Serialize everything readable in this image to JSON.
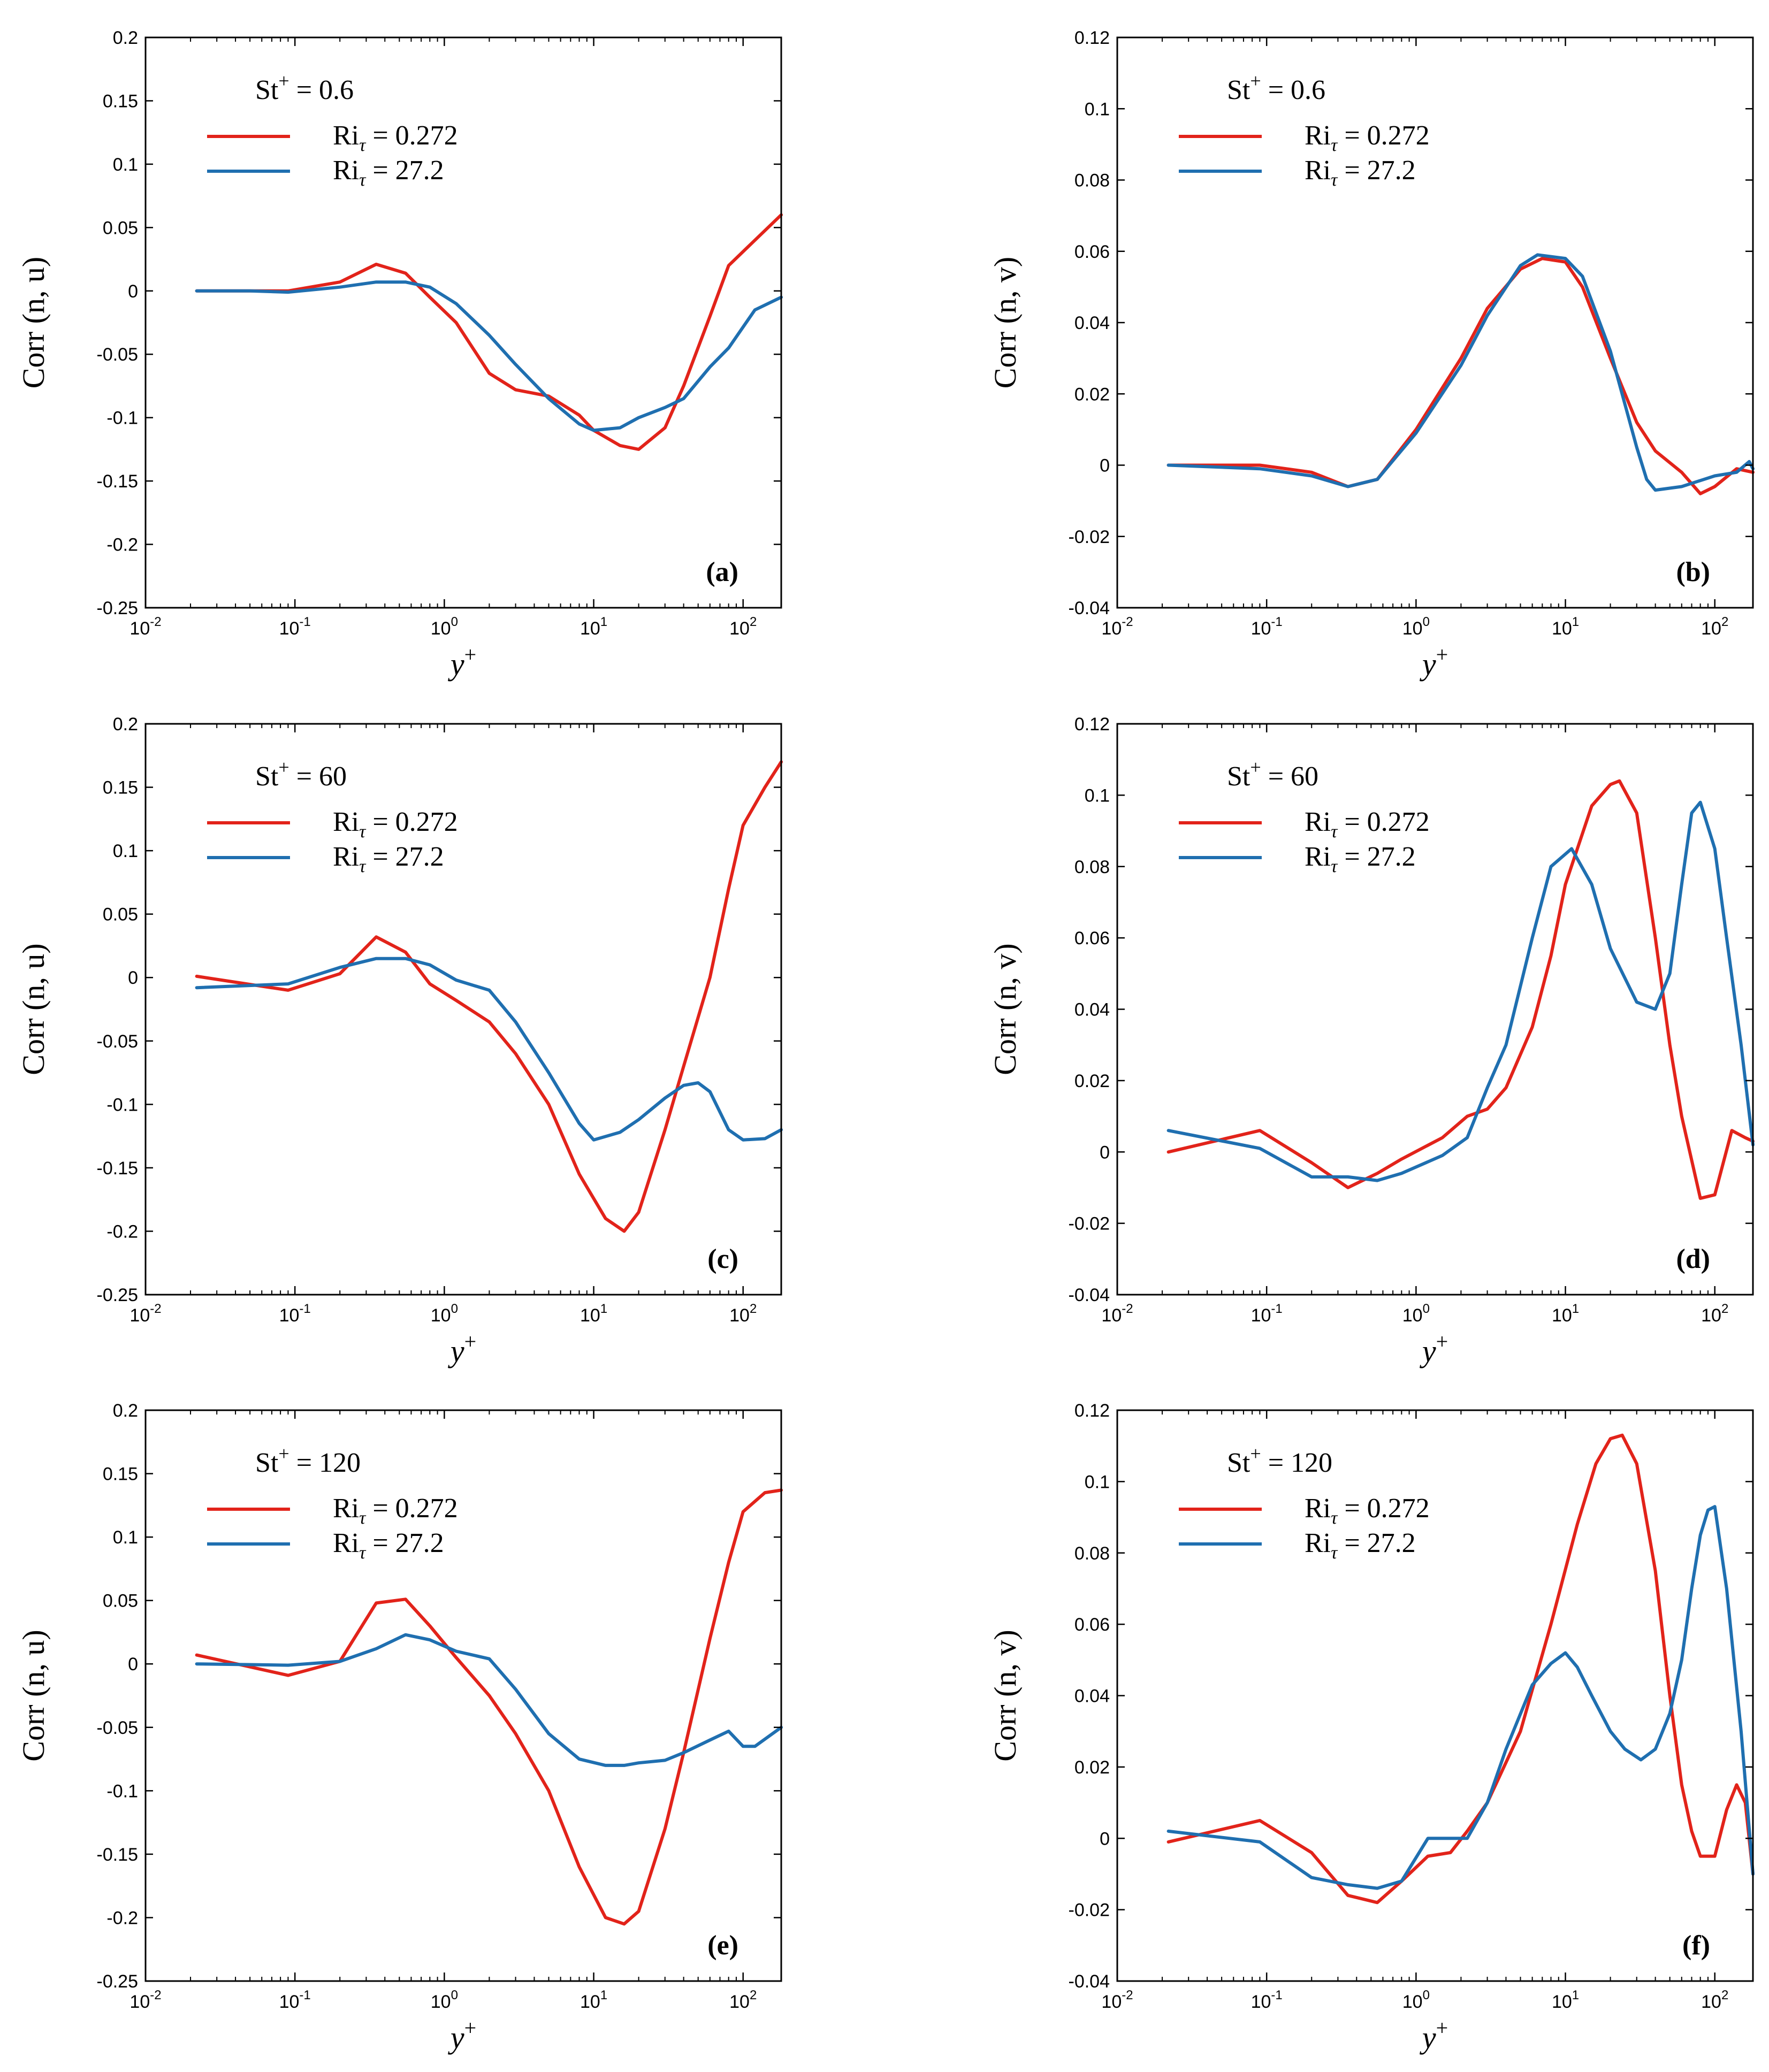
{
  "chart_data": [
    {
      "type": "line",
      "panel_label": "(a)",
      "title": "St⁺ = 0.6",
      "title_base": "St",
      "title_sup": "+",
      "title_value": "= 0.6",
      "xlabel": "y",
      "xlabel_sup": "+",
      "ylabel": "Corr (n, u)",
      "xscale": "log",
      "xlim": [
        0.01,
        180
      ],
      "ylim": [
        -0.25,
        0.2
      ],
      "x_ticks": [
        {
          "base": "10",
          "exp": "-2"
        },
        {
          "base": "10",
          "exp": "-1"
        },
        {
          "base": "10",
          "exp": "0"
        },
        {
          "base": "10",
          "exp": "1"
        },
        {
          "base": "10",
          "exp": "2"
        }
      ],
      "y_ticks": [
        "-0.25",
        "-0.2",
        "-0.15",
        "-0.1",
        "-0.05",
        "0",
        "0.05",
        "0.1",
        "0.15",
        "0.2"
      ],
      "legend_position": "top-left",
      "series": [
        {
          "name": "Ri_τ = 0.272",
          "legend_base": "Ri",
          "legend_sub": "τ",
          "legend_value": "= 0.272",
          "color": "#e2231a",
          "x": [
            0.022,
            0.05,
            0.09,
            0.2,
            0.35,
            0.55,
            0.8,
            1.2,
            2,
            3,
            5,
            8,
            10,
            15,
            20,
            30,
            40,
            60,
            80,
            120,
            180
          ],
          "y": [
            0,
            0,
            0,
            0.007,
            0.021,
            0.014,
            -0.005,
            -0.025,
            -0.065,
            -0.078,
            -0.083,
            -0.098,
            -0.11,
            -0.122,
            -0.125,
            -0.108,
            -0.075,
            -0.02,
            0.02,
            0.04,
            0.06
          ]
        },
        {
          "name": "Ri_τ = 27.2",
          "legend_base": "Ri",
          "legend_sub": "τ",
          "legend_value": "= 27.2",
          "color": "#1f6fb0",
          "x": [
            0.022,
            0.05,
            0.09,
            0.2,
            0.35,
            0.55,
            0.8,
            1.2,
            2,
            3,
            5,
            8,
            10,
            15,
            20,
            30,
            40,
            60,
            80,
            120,
            180
          ],
          "y": [
            0,
            0,
            -0.001,
            0.003,
            0.007,
            0.007,
            0.003,
            -0.01,
            -0.035,
            -0.058,
            -0.085,
            -0.105,
            -0.11,
            -0.108,
            -0.1,
            -0.092,
            -0.085,
            -0.06,
            -0.045,
            -0.015,
            -0.005
          ]
        }
      ]
    },
    {
      "type": "line",
      "panel_label": "(b)",
      "title": "St⁺ = 0.6",
      "title_base": "St",
      "title_sup": "+",
      "title_value": "= 0.6",
      "xlabel": "y",
      "xlabel_sup": "+",
      "ylabel": "Corr (n, v)",
      "xscale": "log",
      "xlim": [
        0.01,
        180
      ],
      "ylim": [
        -0.04,
        0.12
      ],
      "x_ticks": [
        {
          "base": "10",
          "exp": "-2"
        },
        {
          "base": "10",
          "exp": "-1"
        },
        {
          "base": "10",
          "exp": "0"
        },
        {
          "base": "10",
          "exp": "1"
        },
        {
          "base": "10",
          "exp": "2"
        }
      ],
      "y_ticks": [
        "-0.04",
        "-0.02",
        "0",
        "0.02",
        "0.04",
        "0.06",
        "0.08",
        "0.1",
        "0.12"
      ],
      "legend_position": "top-left",
      "series": [
        {
          "name": "Ri_τ = 0.272",
          "legend_base": "Ri",
          "legend_sub": "τ",
          "legend_value": "= 0.272",
          "color": "#e2231a",
          "x": [
            0.022,
            0.09,
            0.2,
            0.35,
            0.55,
            1,
            2,
            3,
            5,
            7,
            10,
            13,
            20,
            30,
            40,
            60,
            80,
            100,
            140,
            180
          ],
          "y": [
            0,
            0,
            -0.002,
            -0.006,
            -0.004,
            0.01,
            0.03,
            0.044,
            0.055,
            0.058,
            0.057,
            0.05,
            0.03,
            0.012,
            0.004,
            -0.002,
            -0.008,
            -0.006,
            -0.001,
            -0.002
          ]
        },
        {
          "name": "Ri_τ = 27.2",
          "legend_base": "Ri",
          "legend_sub": "τ",
          "legend_value": "= 27.2",
          "color": "#1f6fb0",
          "x": [
            0.022,
            0.09,
            0.2,
            0.35,
            0.55,
            1,
            2,
            3,
            5,
            6.5,
            10,
            13,
            20,
            30,
            35,
            40,
            60,
            100,
            140,
            170,
            180
          ],
          "y": [
            0,
            -0.001,
            -0.003,
            -0.006,
            -0.004,
            0.009,
            0.028,
            0.042,
            0.056,
            0.059,
            0.058,
            0.053,
            0.032,
            0.005,
            -0.004,
            -0.007,
            -0.006,
            -0.003,
            -0.002,
            0.001,
            -0.001
          ]
        }
      ]
    },
    {
      "type": "line",
      "panel_label": "(c)",
      "title": "St⁺ = 60",
      "title_base": "St",
      "title_sup": "+",
      "title_value": "= 60",
      "xlabel": "y",
      "xlabel_sup": "+",
      "ylabel": "Corr (n, u)",
      "xscale": "log",
      "xlim": [
        0.01,
        180
      ],
      "ylim": [
        -0.25,
        0.2
      ],
      "x_ticks": [
        {
          "base": "10",
          "exp": "-2"
        },
        {
          "base": "10",
          "exp": "-1"
        },
        {
          "base": "10",
          "exp": "0"
        },
        {
          "base": "10",
          "exp": "1"
        },
        {
          "base": "10",
          "exp": "2"
        }
      ],
      "y_ticks": [
        "-0.25",
        "-0.2",
        "-0.15",
        "-0.1",
        "-0.05",
        "0",
        "0.05",
        "0.1",
        "0.15",
        "0.2"
      ],
      "legend_position": "top-left",
      "series": [
        {
          "name": "Ri_τ = 0.272",
          "legend_base": "Ri",
          "legend_sub": "τ",
          "legend_value": "= 0.272",
          "color": "#e2231a",
          "x": [
            0.022,
            0.09,
            0.2,
            0.35,
            0.55,
            0.8,
            1.2,
            2,
            3,
            5,
            8,
            12,
            16,
            20,
            30,
            40,
            60,
            80,
            100,
            140,
            180
          ],
          "y": [
            0.001,
            -0.01,
            0.003,
            0.032,
            0.02,
            -0.005,
            -0.018,
            -0.035,
            -0.06,
            -0.1,
            -0.155,
            -0.19,
            -0.2,
            -0.185,
            -0.12,
            -0.07,
            0,
            0.07,
            0.12,
            0.15,
            0.17
          ]
        },
        {
          "name": "Ri_τ = 27.2",
          "legend_base": "Ri",
          "legend_sub": "τ",
          "legend_value": "= 27.2",
          "color": "#1f6fb0",
          "x": [
            0.022,
            0.09,
            0.2,
            0.35,
            0.55,
            0.8,
            1.2,
            2,
            3,
            5,
            8,
            10,
            15,
            20,
            30,
            40,
            50,
            60,
            80,
            100,
            140,
            180
          ],
          "y": [
            -0.008,
            -0.005,
            0.008,
            0.015,
            0.015,
            0.01,
            -0.002,
            -0.01,
            -0.035,
            -0.075,
            -0.115,
            -0.128,
            -0.122,
            -0.112,
            -0.095,
            -0.085,
            -0.083,
            -0.09,
            -0.12,
            -0.128,
            -0.127,
            -0.12
          ]
        }
      ]
    },
    {
      "type": "line",
      "panel_label": "(d)",
      "title": "St⁺ = 60",
      "title_base": "St",
      "title_sup": "+",
      "title_value": "= 60",
      "xlabel": "y",
      "xlabel_sup": "+",
      "ylabel": "Corr (n, v)",
      "xscale": "log",
      "xlim": [
        0.01,
        180
      ],
      "ylim": [
        -0.04,
        0.12
      ],
      "x_ticks": [
        {
          "base": "10",
          "exp": "-2"
        },
        {
          "base": "10",
          "exp": "-1"
        },
        {
          "base": "10",
          "exp": "0"
        },
        {
          "base": "10",
          "exp": "1"
        },
        {
          "base": "10",
          "exp": "2"
        }
      ],
      "y_ticks": [
        "-0.04",
        "-0.02",
        "0",
        "0.02",
        "0.04",
        "0.06",
        "0.08",
        "0.1",
        "0.12"
      ],
      "legend_position": "top-left",
      "series": [
        {
          "name": "Ri_τ = 0.272",
          "legend_base": "Ri",
          "legend_sub": "τ",
          "legend_value": "= 0.272",
          "color": "#e2231a",
          "x": [
            0.022,
            0.09,
            0.2,
            0.35,
            0.55,
            0.8,
            1.5,
            2.2,
            3,
            4,
            6,
            8,
            10,
            15,
            20,
            23,
            30,
            40,
            50,
            60,
            80,
            100,
            130,
            160,
            180
          ],
          "y": [
            0,
            0.006,
            -0.003,
            -0.01,
            -0.006,
            -0.002,
            0.004,
            0.01,
            0.012,
            0.018,
            0.035,
            0.055,
            0.075,
            0.097,
            0.103,
            0.104,
            0.095,
            0.06,
            0.03,
            0.01,
            -0.013,
            -0.012,
            0.006,
            0.004,
            0.003
          ]
        },
        {
          "name": "Ri_τ = 27.2",
          "legend_base": "Ri",
          "legend_sub": "τ",
          "legend_value": "= 27.2",
          "color": "#1f6fb0",
          "x": [
            0.022,
            0.09,
            0.2,
            0.35,
            0.55,
            0.8,
            1.5,
            2.2,
            3,
            4,
            6,
            8,
            11,
            15,
            20,
            30,
            40,
            50,
            60,
            70,
            80,
            100,
            120,
            150,
            180
          ],
          "y": [
            0.006,
            0.001,
            -0.007,
            -0.007,
            -0.008,
            -0.006,
            -0.001,
            0.004,
            0.018,
            0.03,
            0.06,
            0.08,
            0.085,
            0.075,
            0.057,
            0.042,
            0.04,
            0.05,
            0.075,
            0.095,
            0.098,
            0.085,
            0.06,
            0.03,
            0.002
          ]
        }
      ]
    },
    {
      "type": "line",
      "panel_label": "(e)",
      "title": "St⁺ = 120",
      "title_base": "St",
      "title_sup": "+",
      "title_value": "= 120",
      "xlabel": "y",
      "xlabel_sup": "+",
      "ylabel": "Corr (n, u)",
      "xscale": "log",
      "xlim": [
        0.01,
        180
      ],
      "ylim": [
        -0.25,
        0.2
      ],
      "x_ticks": [
        {
          "base": "10",
          "exp": "-2"
        },
        {
          "base": "10",
          "exp": "-1"
        },
        {
          "base": "10",
          "exp": "0"
        },
        {
          "base": "10",
          "exp": "1"
        },
        {
          "base": "10",
          "exp": "2"
        }
      ],
      "y_ticks": [
        "-0.25",
        "-0.2",
        "-0.15",
        "-0.1",
        "-0.05",
        "0",
        "0.05",
        "0.1",
        "0.15",
        "0.2"
      ],
      "legend_position": "top-left",
      "series": [
        {
          "name": "Ri_τ = 0.272",
          "legend_base": "Ri",
          "legend_sub": "τ",
          "legend_value": "= 0.272",
          "color": "#e2231a",
          "x": [
            0.022,
            0.09,
            0.2,
            0.35,
            0.55,
            0.8,
            1.2,
            2,
            3,
            5,
            8,
            12,
            16,
            20,
            30,
            40,
            60,
            80,
            100,
            140,
            180
          ],
          "y": [
            0.007,
            -0.009,
            0.002,
            0.048,
            0.051,
            0.03,
            0.005,
            -0.025,
            -0.055,
            -0.1,
            -0.16,
            -0.2,
            -0.205,
            -0.195,
            -0.13,
            -0.07,
            0.02,
            0.08,
            0.12,
            0.135,
            0.137
          ]
        },
        {
          "name": "Ri_τ = 27.2",
          "legend_base": "Ri",
          "legend_sub": "τ",
          "legend_value": "= 27.2",
          "color": "#1f6fb0",
          "x": [
            0.022,
            0.09,
            0.2,
            0.35,
            0.55,
            0.8,
            1.2,
            2,
            3,
            5,
            8,
            12,
            16,
            20,
            30,
            40,
            60,
            80,
            100,
            120,
            180
          ],
          "y": [
            0,
            -0.001,
            0.002,
            0.012,
            0.023,
            0.019,
            0.01,
            0.004,
            -0.02,
            -0.055,
            -0.075,
            -0.08,
            -0.08,
            -0.078,
            -0.076,
            -0.07,
            -0.06,
            -0.053,
            -0.065,
            -0.065,
            -0.05
          ]
        }
      ]
    },
    {
      "type": "line",
      "panel_label": "(f)",
      "title": "St⁺ = 120",
      "title_base": "St",
      "title_sup": "+",
      "title_value": "= 120",
      "xlabel": "y",
      "xlabel_sup": "+",
      "ylabel": "Corr (n, v)",
      "xscale": "log",
      "xlim": [
        0.01,
        180
      ],
      "ylim": [
        -0.04,
        0.12
      ],
      "x_ticks": [
        {
          "base": "10",
          "exp": "-2"
        },
        {
          "base": "10",
          "exp": "-1"
        },
        {
          "base": "10",
          "exp": "0"
        },
        {
          "base": "10",
          "exp": "1"
        },
        {
          "base": "10",
          "exp": "2"
        }
      ],
      "y_ticks": [
        "-0.04",
        "-0.02",
        "0",
        "0.02",
        "0.04",
        "0.06",
        "0.08",
        "0.1",
        "0.12"
      ],
      "legend_position": "top-left",
      "series": [
        {
          "name": "Ri_τ = 0.272",
          "legend_base": "Ri",
          "legend_sub": "τ",
          "legend_value": "= 0.272",
          "color": "#e2231a",
          "x": [
            0.022,
            0.09,
            0.2,
            0.35,
            0.55,
            0.8,
            1.2,
            1.7,
            2.2,
            3,
            5,
            8,
            12,
            16,
            20,
            24,
            30,
            40,
            50,
            60,
            70,
            80,
            100,
            120,
            140,
            160,
            180
          ],
          "y": [
            -0.001,
            0.005,
            -0.004,
            -0.016,
            -0.018,
            -0.012,
            -0.005,
            -0.004,
            0.002,
            0.01,
            0.03,
            0.06,
            0.088,
            0.105,
            0.112,
            0.113,
            0.105,
            0.075,
            0.04,
            0.015,
            0.002,
            -0.005,
            -0.005,
            0.008,
            0.015,
            0.01,
            -0.01
          ]
        },
        {
          "name": "Ri_τ = 27.2",
          "legend_base": "Ri",
          "legend_sub": "τ",
          "legend_value": "= 27.2",
          "color": "#1f6fb0",
          "x": [
            0.022,
            0.09,
            0.2,
            0.35,
            0.55,
            0.8,
            1.2,
            2.2,
            3,
            4,
            6,
            8,
            10,
            12,
            15,
            20,
            25,
            32,
            40,
            50,
            60,
            70,
            80,
            90,
            100,
            120,
            150,
            180
          ],
          "y": [
            0.002,
            -0.001,
            -0.011,
            -0.013,
            -0.014,
            -0.012,
            0,
            0,
            0.01,
            0.025,
            0.043,
            0.049,
            0.052,
            0.048,
            0.04,
            0.03,
            0.025,
            0.022,
            0.025,
            0.035,
            0.05,
            0.07,
            0.085,
            0.092,
            0.093,
            0.07,
            0.03,
            -0.01
          ]
        }
      ]
    }
  ]
}
